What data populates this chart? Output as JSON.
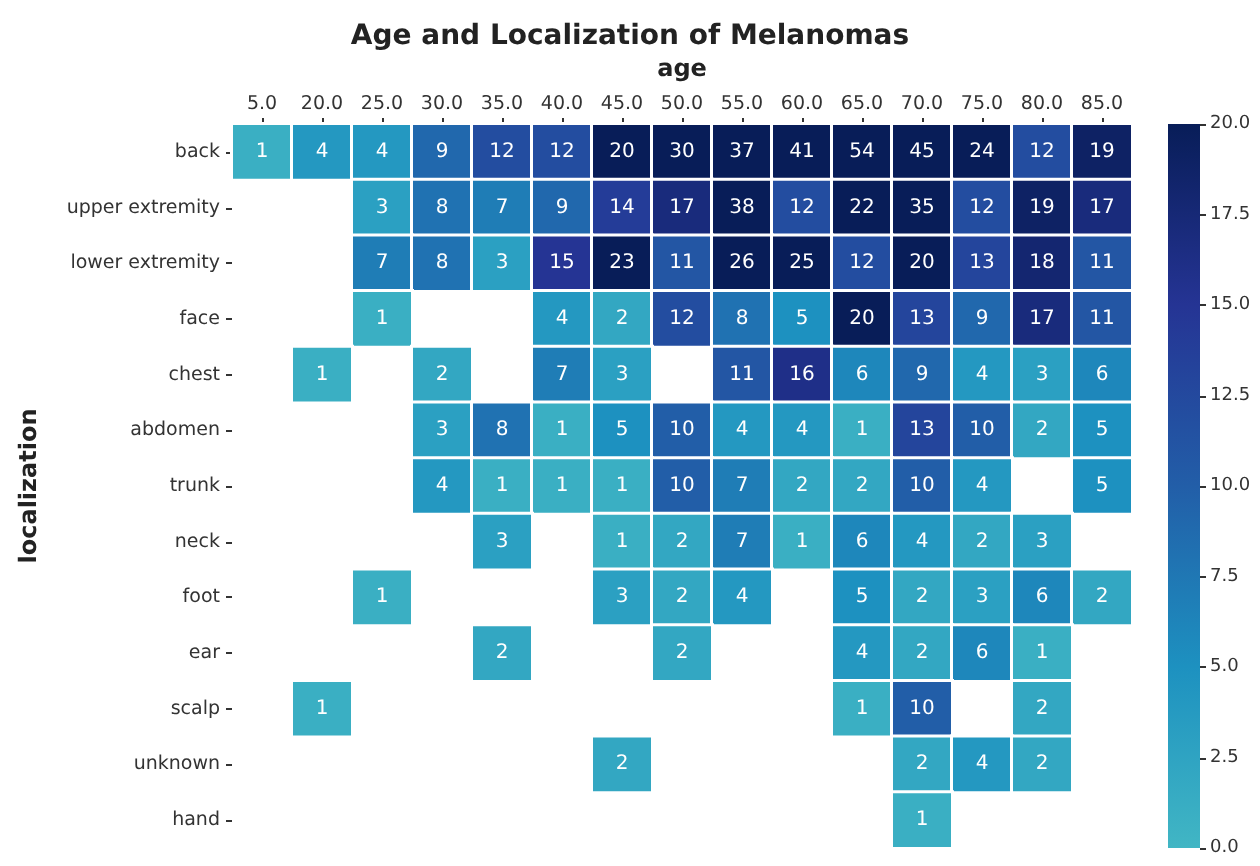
{
  "chart_data": {
    "type": "heatmap",
    "title": "Age and Localization of Melanomas",
    "xlabel": "age",
    "ylabel": "localization",
    "categories": [
      "5.0",
      "20.0",
      "25.0",
      "30.0",
      "35.0",
      "40.0",
      "45.0",
      "50.0",
      "55.0",
      "60.0",
      "65.0",
      "70.0",
      "75.0",
      "80.0",
      "85.0"
    ],
    "y_categories": [
      "back",
      "upper extremity",
      "lower extremity",
      "face",
      "chest",
      "abdomen",
      "trunk",
      "neck",
      "foot",
      "ear",
      "scalp",
      "unknown",
      "hand"
    ],
    "cells": [
      [
        1,
        4,
        4,
        9,
        12,
        12,
        20,
        30,
        37,
        41,
        54,
        45,
        24,
        12,
        19
      ],
      [
        null,
        null,
        3,
        8,
        7,
        9,
        14,
        17,
        38,
        12,
        22,
        35,
        12,
        19,
        17
      ],
      [
        null,
        null,
        7,
        8,
        3,
        15,
        23,
        11,
        26,
        25,
        12,
        20,
        13,
        18,
        11
      ],
      [
        null,
        null,
        1,
        null,
        null,
        4,
        2,
        12,
        8,
        5,
        20,
        13,
        9,
        17,
        11
      ],
      [
        null,
        1,
        null,
        2,
        null,
        7,
        3,
        null,
        11,
        16,
        6,
        9,
        4,
        3,
        6
      ],
      [
        null,
        null,
        null,
        3,
        8,
        1,
        5,
        10,
        4,
        4,
        1,
        13,
        10,
        2,
        5
      ],
      [
        null,
        null,
        null,
        4,
        1,
        1,
        1,
        10,
        7,
        2,
        2,
        10,
        4,
        null,
        5
      ],
      [
        null,
        null,
        null,
        null,
        3,
        null,
        1,
        2,
        7,
        1,
        6,
        4,
        2,
        3,
        null
      ],
      [
        null,
        null,
        1,
        null,
        null,
        null,
        3,
        2,
        4,
        null,
        5,
        2,
        3,
        6,
        2
      ],
      [
        null,
        null,
        null,
        null,
        2,
        null,
        null,
        2,
        null,
        null,
        4,
        2,
        6,
        1,
        null
      ],
      [
        null,
        1,
        null,
        null,
        null,
        null,
        null,
        null,
        null,
        null,
        1,
        10,
        null,
        2,
        null
      ],
      [
        null,
        null,
        null,
        null,
        null,
        null,
        2,
        null,
        null,
        null,
        null,
        2,
        4,
        2,
        null
      ],
      [
        null,
        null,
        null,
        null,
        null,
        null,
        null,
        null,
        null,
        null,
        null,
        1,
        null,
        null,
        null
      ]
    ],
    "data_labels": true,
    "clim": [
      0,
      20
    ],
    "cticks": [
      {
        "value": 0,
        "label": "0.0"
      },
      {
        "value": 2.5,
        "label": "2.5"
      },
      {
        "value": 5,
        "label": "5.0"
      },
      {
        "value": 7.5,
        "label": "7.5"
      },
      {
        "value": 10,
        "label": "10.0"
      },
      {
        "value": 12.5,
        "label": "12.5"
      },
      {
        "value": 15,
        "label": "15.0"
      },
      {
        "value": 17.5,
        "label": "17.5"
      },
      {
        "value": 20,
        "label": "20.0"
      }
    ]
  }
}
